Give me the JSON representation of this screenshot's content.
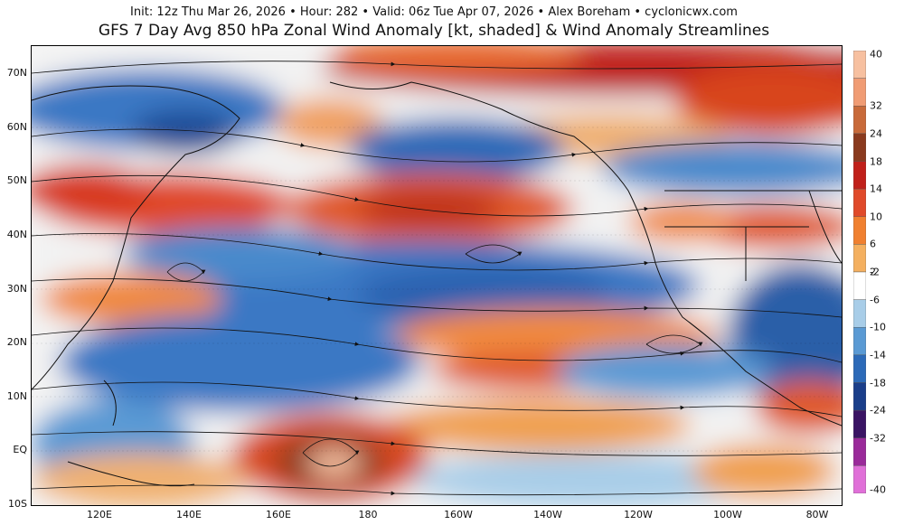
{
  "header": {
    "info_line": "Init: 12z Thu Mar 26, 2026 • Hour: 282 • Valid: 06z Tue Apr 07, 2026 • Alex Boreham • cyclonicwx.com",
    "title": "GFS 7 Day Avg 850 hPa Zonal Wind Anomaly [kt, shaded] & Wind Anomaly Streamlines"
  },
  "map": {
    "lat_labels": [
      "70N",
      "60N",
      "50N",
      "40N",
      "30N",
      "20N",
      "10N",
      "EQ",
      "10S"
    ],
    "lon_labels": [
      "120E",
      "140E",
      "160E",
      "180",
      "160W",
      "140W",
      "120W",
      "100W",
      "80W"
    ],
    "lat_range": [
      -10,
      75
    ],
    "lon_range": [
      105,
      285
    ]
  },
  "colorbar": {
    "labels": [
      "40",
      "32",
      "24",
      "18",
      "14",
      "10",
      "6",
      "2",
      "-2",
      "-6",
      "-10",
      "-14",
      "-18",
      "-24",
      "-32",
      "-40"
    ],
    "colors": [
      "#f7c0a0",
      "#f09c74",
      "#c86a3a",
      "#8a3a1e",
      "#c0201a",
      "#e04a2a",
      "#f08030",
      "#f4b060",
      "#ffffff",
      "#a8cde8",
      "#5a9ad4",
      "#2c6ab8",
      "#1a3e8a",
      "#3a1464",
      "#9a2a9a",
      "#e070d8"
    ]
  }
}
